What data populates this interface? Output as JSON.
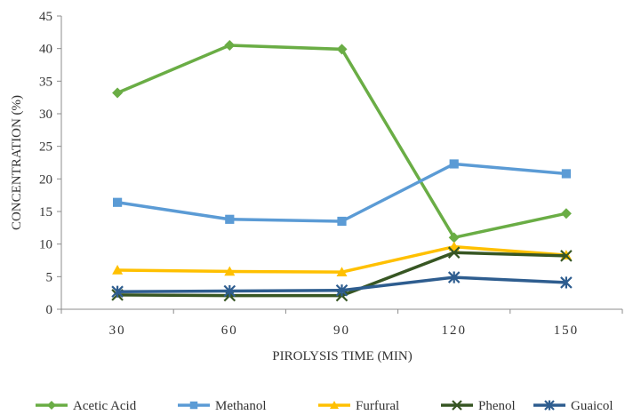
{
  "chart_data": {
    "type": "line",
    "xlabel": "PIROLYSIS TIME (MIN)",
    "ylabel": "CONCENTRATION (%)",
    "categories": [
      "30",
      "60",
      "90",
      "120",
      "150"
    ],
    "ylim": [
      0,
      45
    ],
    "yticks": [
      "0",
      "5",
      "10",
      "15",
      "20",
      "25",
      "30",
      "35",
      "40",
      "45"
    ],
    "grid": false,
    "legend_position": "bottom",
    "series": [
      {
        "name": "Acetic Acid",
        "color": "#6aad45",
        "marker": "diamond",
        "values": [
          33.2,
          40.5,
          39.9,
          11.0,
          14.7
        ]
      },
      {
        "name": "Methanol",
        "color": "#5b9bd5",
        "marker": "square",
        "values": [
          16.4,
          13.8,
          13.5,
          22.3,
          20.8
        ]
      },
      {
        "name": "Furfural",
        "color": "#ffc000",
        "marker": "triangle",
        "values": [
          6.0,
          5.8,
          5.7,
          9.6,
          8.3
        ]
      },
      {
        "name": "Phenol",
        "color": "#375623",
        "marker": "x",
        "values": [
          2.2,
          2.1,
          2.1,
          8.7,
          8.2
        ]
      },
      {
        "name": "Guaicol",
        "color": "#2e5d8f",
        "marker": "star",
        "values": [
          2.7,
          2.8,
          2.9,
          4.9,
          4.1
        ]
      }
    ]
  }
}
